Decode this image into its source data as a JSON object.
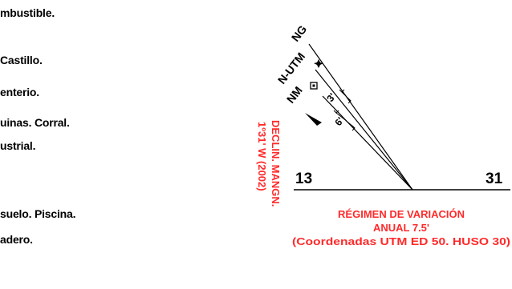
{
  "legend": {
    "items": [
      "mbustible.",
      "Castillo.",
      "enterio.",
      "uinas. Corral.",
      "ustrial.",
      "suelo. Piscina.",
      "adero."
    ]
  },
  "north_arrow": {
    "ng_label": "NG",
    "utm_label": "N-UTM",
    "nm_label": "NM",
    "small_angle": "3'",
    "large_angle": "6'"
  },
  "declination": {
    "line1": "DECLIN. MANGN.",
    "line2": "1º31' W (2002)"
  },
  "scale": {
    "left": "13",
    "right": "31"
  },
  "variation": {
    "line1": "RÉGIMEN DE VARIACIÓN",
    "line2": "ANUAL 7.5'",
    "line3": "(Coordenadas UTM ED 50. HUSO 30)"
  },
  "colors": {
    "text": "#000000",
    "accent_red": "#ff2a2a"
  }
}
